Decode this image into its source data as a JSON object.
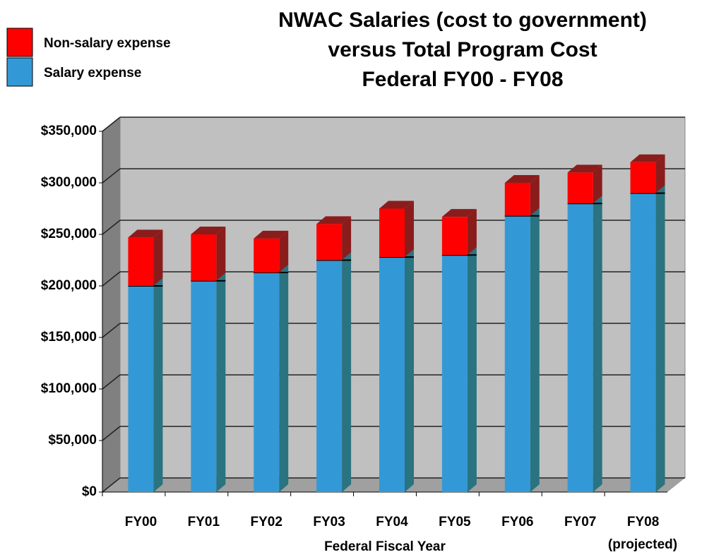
{
  "chart_data": {
    "type": "stacked_bar_3d",
    "title": [
      "NWAC Salaries (cost to government)",
      "versus Total Program Cost",
      "Federal FY00 - FY08"
    ],
    "x_label": "Federal Fiscal Year",
    "annotation": "(projected)",
    "categories": [
      "FY00",
      "FY01",
      "FY02",
      "FY03",
      "FY04",
      "FY05",
      "FY06",
      "FY07",
      "FY08"
    ],
    "series": [
      {
        "name": "Salary expense",
        "color": "#3399d6",
        "side_color": "#2a7380",
        "values": [
          200000,
          205000,
          213000,
          225000,
          228000,
          230000,
          268000,
          280000,
          290000
        ]
      },
      {
        "name": "Non-salary expense",
        "color": "#ff0000",
        "side_color": "#8b1c1c",
        "values": [
          47000,
          45000,
          33000,
          35000,
          47000,
          37000,
          32000,
          30000,
          30000
        ]
      }
    ],
    "ylim": [
      0,
      350000
    ],
    "yticks": [
      {
        "value": 0,
        "label": "$0"
      },
      {
        "value": 50000,
        "label": "$50,000"
      },
      {
        "value": 100000,
        "label": "$100,000"
      },
      {
        "value": 150000,
        "label": "$150,000"
      },
      {
        "value": 200000,
        "label": "$200,000"
      },
      {
        "value": 250000,
        "label": "$250,000"
      },
      {
        "value": 300000,
        "label": "$300,000"
      },
      {
        "value": 350000,
        "label": "$350,000"
      }
    ],
    "grid": true,
    "legend": "top-left"
  }
}
